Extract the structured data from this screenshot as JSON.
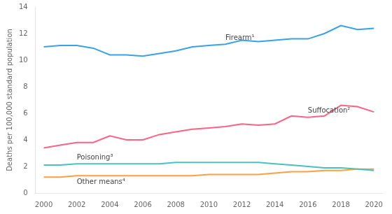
{
  "chart_data": {
    "type": "line",
    "x": [
      2000,
      2001,
      2002,
      2003,
      2004,
      2005,
      2006,
      2007,
      2008,
      2009,
      2010,
      2011,
      2012,
      2013,
      2014,
      2015,
      2016,
      2017,
      2018,
      2019,
      2020
    ],
    "series": [
      {
        "name": "Firearm¹",
        "values": [
          11.0,
          11.1,
          11.1,
          10.9,
          10.4,
          10.4,
          10.3,
          10.5,
          10.7,
          11.0,
          11.1,
          11.2,
          11.5,
          11.4,
          11.5,
          11.6,
          11.6,
          12.0,
          12.6,
          12.3,
          12.4
        ]
      },
      {
        "name": "Suffocation²",
        "values": [
          3.4,
          3.6,
          3.8,
          3.8,
          4.3,
          4.0,
          4.0,
          4.4,
          4.6,
          4.8,
          4.9,
          5.0,
          5.2,
          5.1,
          5.2,
          5.8,
          5.7,
          5.8,
          6.6,
          6.5,
          6.1
        ]
      },
      {
        "name": "Poisoning³",
        "values": [
          2.1,
          2.1,
          2.2,
          2.2,
          2.2,
          2.2,
          2.2,
          2.2,
          2.3,
          2.3,
          2.3,
          2.3,
          2.3,
          2.3,
          2.2,
          2.1,
          2.0,
          1.9,
          1.9,
          1.8,
          1.7
        ]
      },
      {
        "name": "Other means⁴",
        "values": [
          1.2,
          1.2,
          1.3,
          1.3,
          1.3,
          1.3,
          1.3,
          1.3,
          1.3,
          1.3,
          1.4,
          1.4,
          1.4,
          1.4,
          1.5,
          1.6,
          1.6,
          1.7,
          1.7,
          1.8,
          1.8
        ]
      }
    ],
    "ylabel": "Deaths per 100,000 standard population",
    "xlim": [
      1999.5,
      2020.5
    ],
    "xticks": [
      2000,
      2002,
      2004,
      2006,
      2008,
      2010,
      2012,
      2014,
      2016,
      2018,
      2020
    ],
    "ylim": [
      0,
      14
    ],
    "yticks": [
      0,
      2,
      4,
      6,
      8,
      10,
      12,
      14
    ],
    "grid": false
  }
}
